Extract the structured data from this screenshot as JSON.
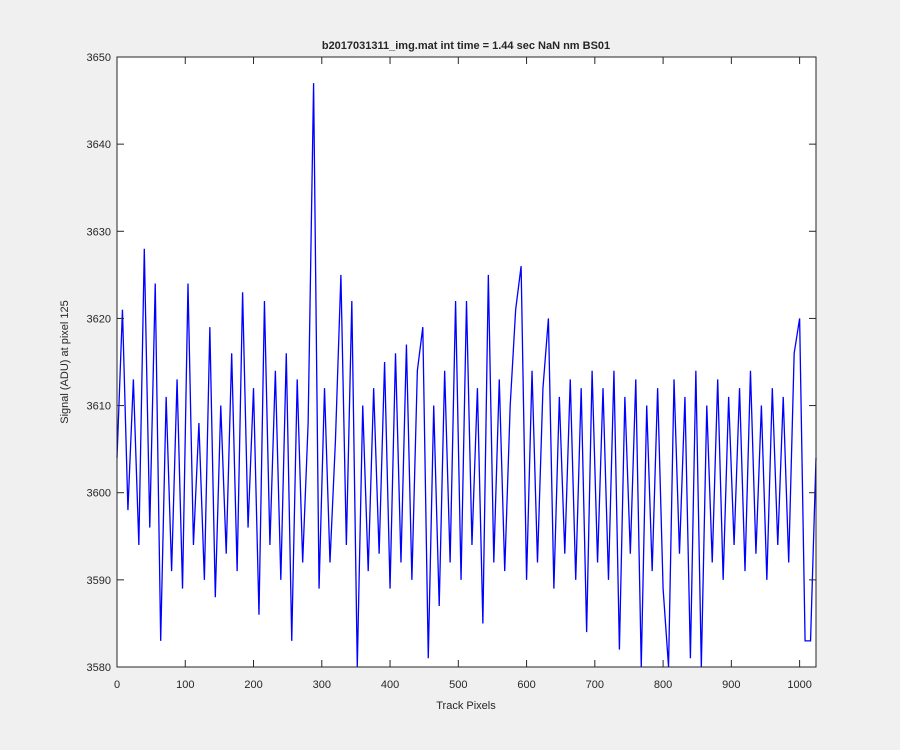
{
  "chart_data": {
    "type": "line",
    "title": "b2017031311_img.mat int time = 1.44 sec  NaN nm BS01",
    "xlabel": "Track Pixels",
    "ylabel": "Signal (ADU) at pixel 125",
    "xlim": [
      0,
      1024
    ],
    "ylim": [
      3580,
      3650
    ],
    "xticks": [
      0,
      100,
      200,
      300,
      400,
      500,
      600,
      700,
      800,
      900,
      1000
    ],
    "yticks": [
      3580,
      3590,
      3600,
      3610,
      3620,
      3630,
      3640,
      3650
    ],
    "grid": false,
    "series": [
      {
        "name": "signal",
        "color": "#0000ff",
        "x": [
          0,
          8,
          16,
          24,
          32,
          40,
          48,
          56,
          64,
          72,
          80,
          88,
          96,
          104,
          112,
          120,
          128,
          136,
          144,
          152,
          160,
          168,
          176,
          184,
          192,
          200,
          208,
          216,
          224,
          232,
          240,
          248,
          256,
          264,
          272,
          280,
          288,
          296,
          304,
          312,
          320,
          328,
          336,
          344,
          352,
          360,
          368,
          376,
          384,
          392,
          400,
          408,
          416,
          424,
          432,
          440,
          448,
          456,
          464,
          472,
          480,
          488,
          496,
          504,
          512,
          520,
          528,
          536,
          544,
          552,
          560,
          568,
          576,
          584,
          592,
          600,
          608,
          616,
          624,
          632,
          640,
          648,
          656,
          664,
          672,
          680,
          688,
          696,
          704,
          712,
          720,
          728,
          736,
          744,
          752,
          760,
          768,
          776,
          784,
          792,
          800,
          808,
          816,
          824,
          832,
          840,
          848,
          856,
          864,
          872,
          880,
          888,
          896,
          904,
          912,
          920,
          928,
          936,
          944,
          952,
          960,
          968,
          976,
          984,
          992,
          1000,
          1008,
          1016,
          1024
        ],
        "values": [
          3604,
          3621,
          3598,
          3613,
          3594,
          3628,
          3596,
          3624,
          3583,
          3611,
          3591,
          3613,
          3589,
          3624,
          3594,
          3608,
          3590,
          3619,
          3588,
          3610,
          3593,
          3616,
          3591,
          3623,
          3596,
          3612,
          3586,
          3622,
          3594,
          3614,
          3590,
          3616,
          3583,
          3613,
          3592,
          3608,
          3647,
          3589,
          3612,
          3592,
          3606,
          3625,
          3594,
          3622,
          3580,
          3610,
          3591,
          3612,
          3593,
          3615,
          3589,
          3616,
          3592,
          3617,
          3590,
          3614,
          3619,
          3581,
          3610,
          3587,
          3614,
          3592,
          3622,
          3590,
          3622,
          3594,
          3612,
          3585,
          3625,
          3592,
          3613,
          3591,
          3610,
          3621,
          3626,
          3590,
          3614,
          3592,
          3612,
          3620,
          3589,
          3611,
          3593,
          3613,
          3590,
          3612,
          3584,
          3614,
          3592,
          3612,
          3590,
          3614,
          3582,
          3611,
          3593,
          3613,
          3580,
          3610,
          3591,
          3612,
          3589,
          3580,
          3613,
          3593,
          3611,
          3581,
          3614,
          3580,
          3610,
          3592,
          3613,
          3590,
          3611,
          3594,
          3612,
          3591,
          3614,
          3593,
          3610,
          3590,
          3612,
          3594,
          3611,
          3592,
          3616,
          3620,
          3583,
          3583,
          3604
        ]
      }
    ]
  }
}
